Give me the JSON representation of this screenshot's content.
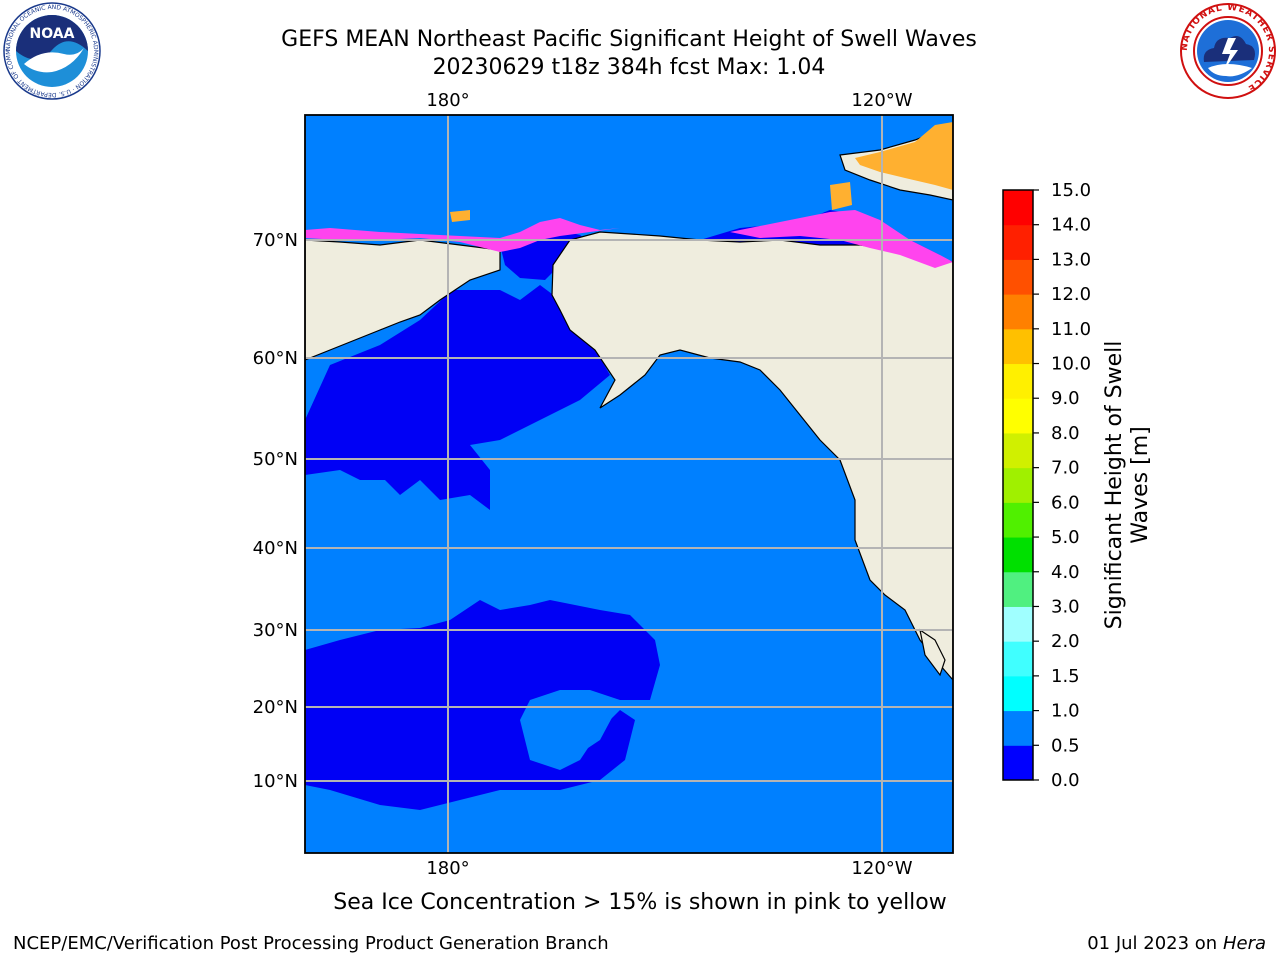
{
  "title": {
    "line1": "GEFS MEAN Northeast Pacific Significant Height of Swell Waves",
    "line2": "20230629 t18z 384h fcst   Max: 1.04"
  },
  "map": {
    "lon_labels_top": [
      "180°",
      "120°W"
    ],
    "lon_labels_bottom": [
      "180°",
      "120°W"
    ],
    "lat_labels": [
      "70°N",
      "60°N",
      "50°N",
      "40°N",
      "30°N",
      "20°N",
      "10°N"
    ],
    "colors": {
      "ocean_low": "#0000f5",
      "ocean_mid": "#0080ff",
      "land": "#efedde",
      "ice_pink": "#ff44ee",
      "ice_orange": "#ffb030",
      "grid": "#b4b4b4"
    }
  },
  "colorbar": {
    "title_line1": "Significant Height of Swell",
    "title_line2": "Waves [m]",
    "tick_labels": [
      "0.0",
      "0.5",
      "1.0",
      "1.5",
      "2.0",
      "3.0",
      "4.0",
      "5.0",
      "6.0",
      "7.0",
      "8.0",
      "9.0",
      "10.0",
      "11.0",
      "12.0",
      "13.0",
      "14.0",
      "15.0"
    ],
    "colors": [
      "#0000ff",
      "#0080ff",
      "#00ffff",
      "#40ffff",
      "#a0ffff",
      "#50f080",
      "#00e000",
      "#50f000",
      "#a0f000",
      "#d0f000",
      "#ffff00",
      "#fff000",
      "#ffc000",
      "#ff8000",
      "#ff5000",
      "#ff2000",
      "#ff0000"
    ]
  },
  "logos": {
    "noaa_text": "NOAA",
    "noaa_ring_text": "NATIONAL OCEANIC AND ATMOSPHERIC ADMINISTRATION · U.S. DEPARTMENT OF COMMERCE",
    "nws_ring_text": "NATIONAL WEATHER SERVICE"
  },
  "note": "Sea Ice Concentration > 15% is shown in pink to yellow",
  "footer": {
    "left": "NCEP/EMC/Verification Post Processing Product Generation Branch",
    "date": "01 Jul 2023 on ",
    "host": "Hera"
  }
}
